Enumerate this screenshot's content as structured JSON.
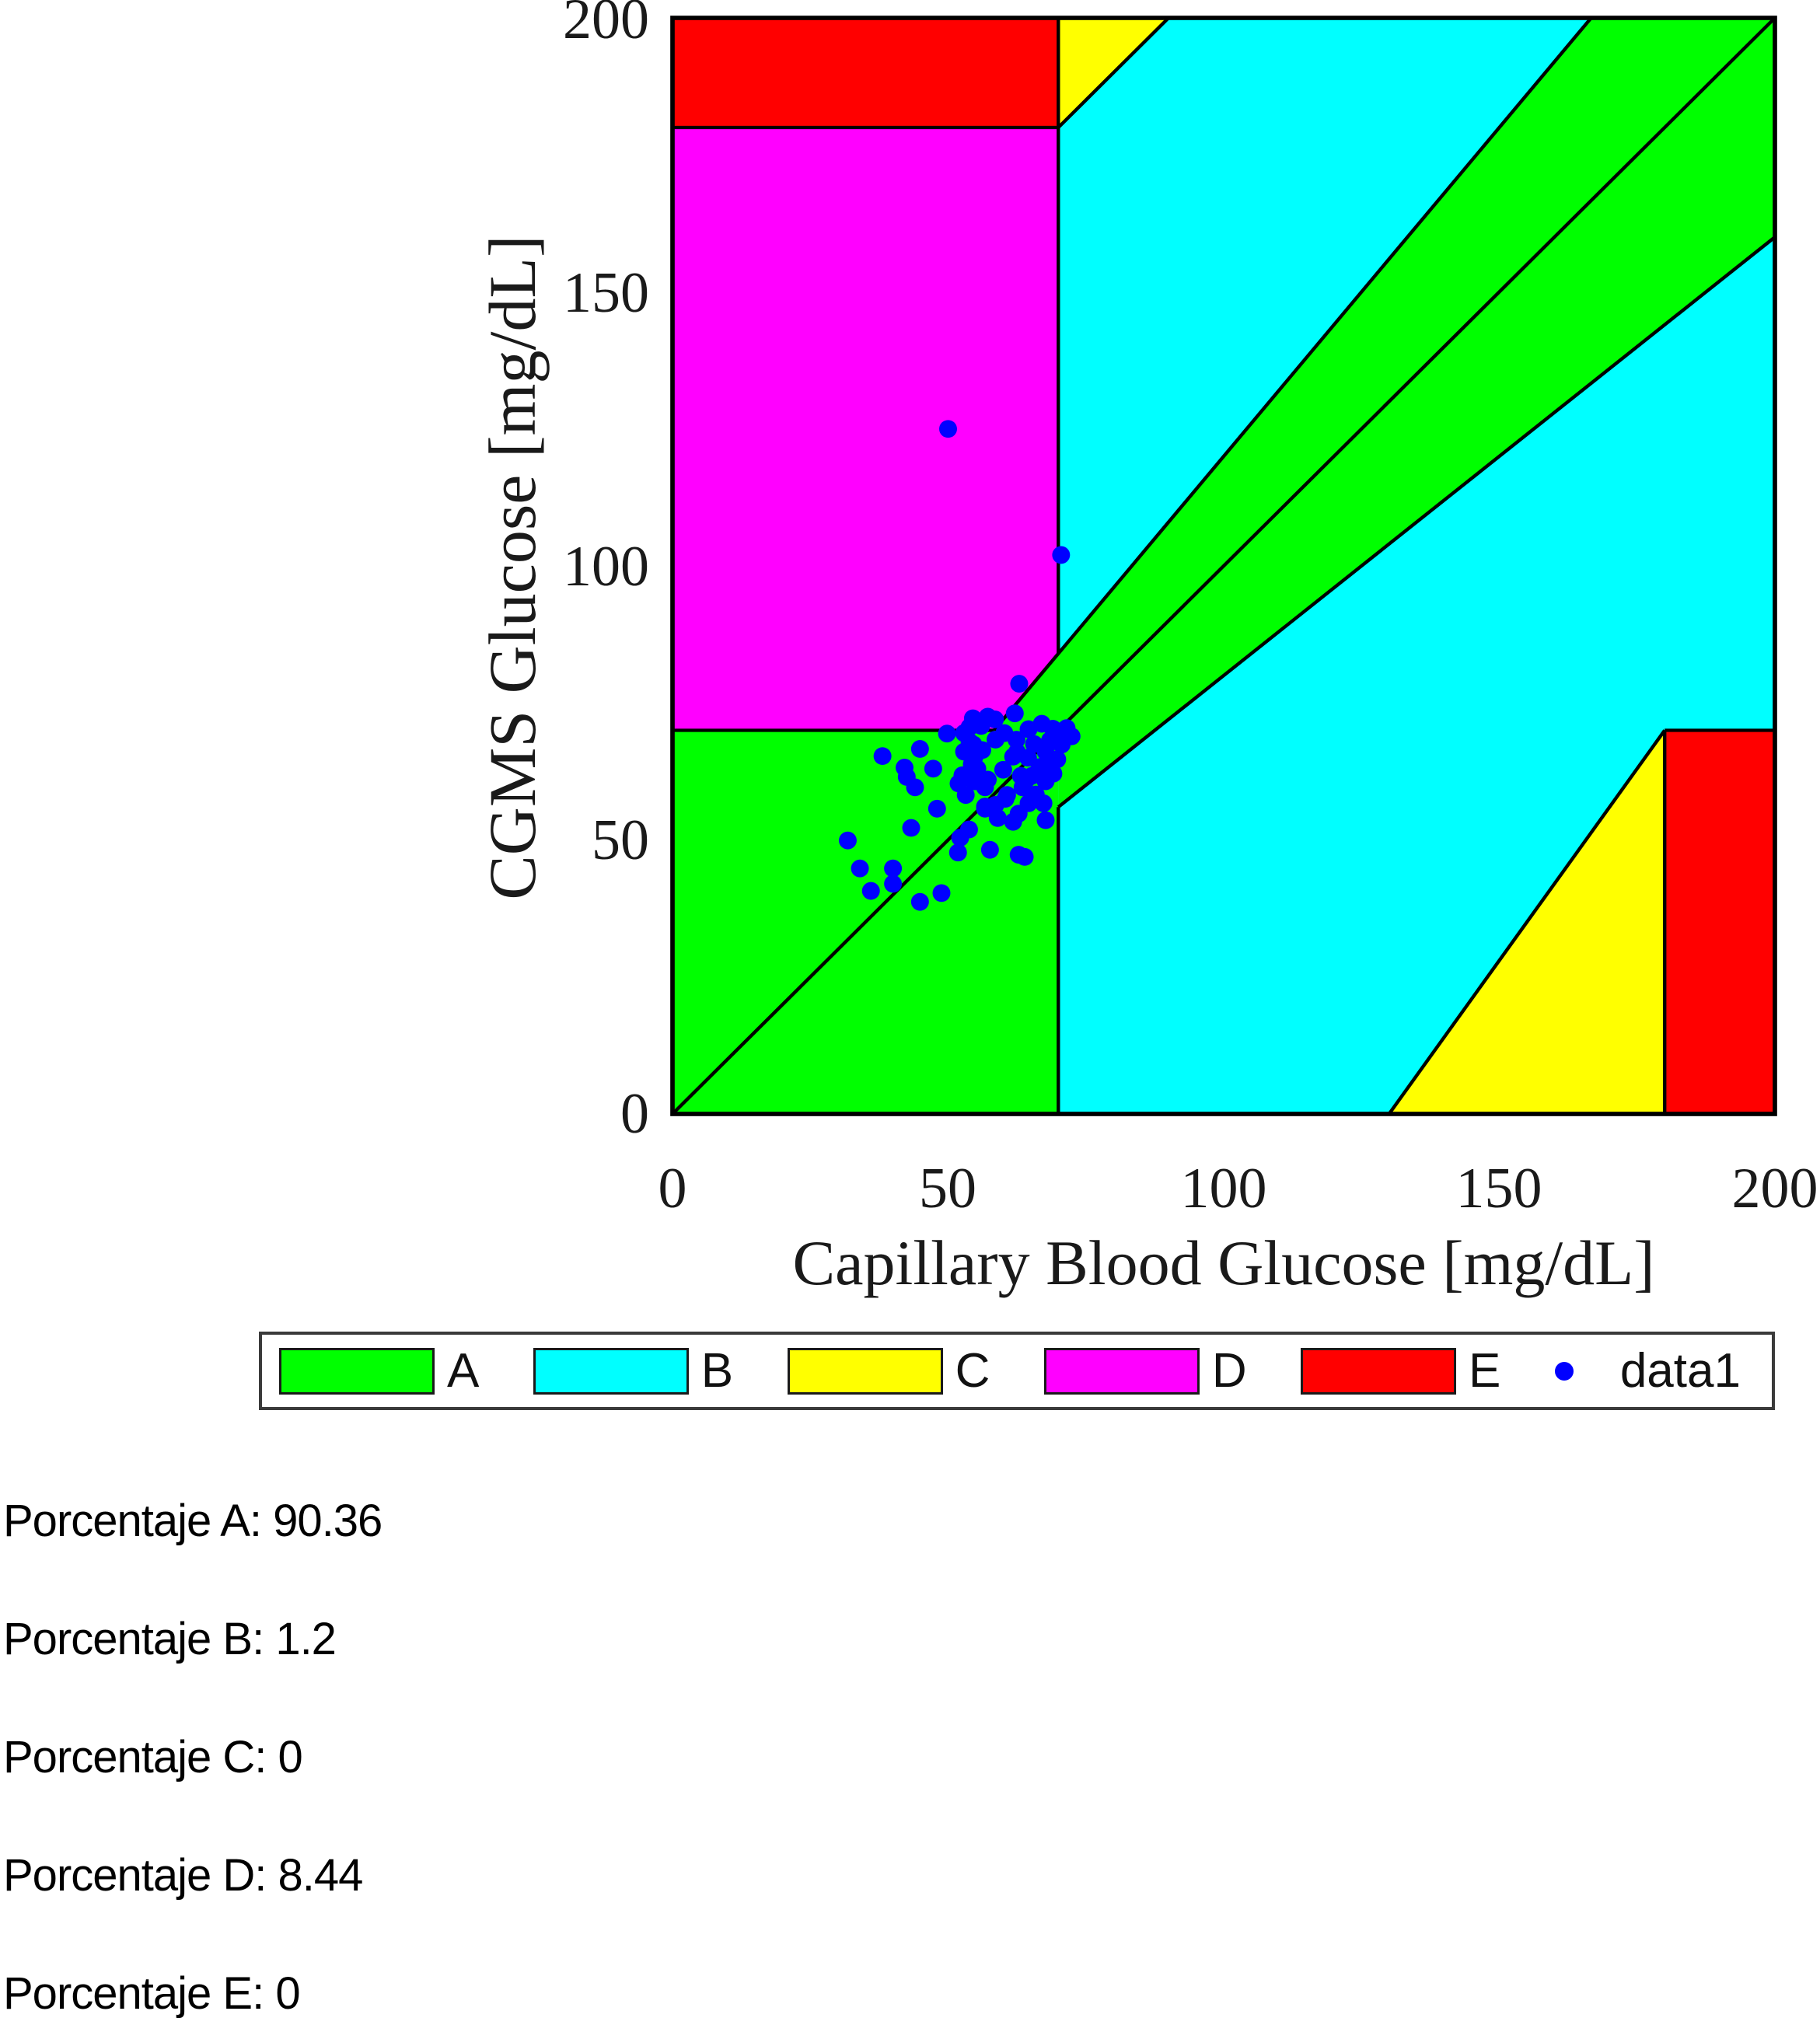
{
  "plot": {
    "xlabel": "Capillary Blood Glucose [mg/dL]",
    "ylabel": "CGMS Glucose [mg/dL]",
    "x_tick_labels": [
      "0",
      "50",
      "100",
      "150",
      "200"
    ],
    "y_tick_labels": [
      "0",
      "50",
      "100",
      "150",
      "200"
    ]
  },
  "legend": {
    "entries": [
      {
        "label": "A",
        "color": "#00ff00",
        "type": "patch"
      },
      {
        "label": "B",
        "color": "#00ffff",
        "type": "patch"
      },
      {
        "label": "C",
        "color": "#ffff00",
        "type": "patch"
      },
      {
        "label": "D",
        "color": "#ff00ff",
        "type": "patch"
      },
      {
        "label": "E",
        "color": "#ff0000",
        "type": "patch"
      },
      {
        "label": "data1",
        "color": "#0000ff",
        "type": "marker"
      }
    ]
  },
  "results": {
    "lines": [
      {
        "zone": "A",
        "value": "90.36",
        "text": "Porcentaje A: 90.36"
      },
      {
        "zone": "B",
        "value": "1.2",
        "text": "Porcentaje B: 1.2"
      },
      {
        "zone": "C",
        "value": "0",
        "text": "Porcentaje C: 0"
      },
      {
        "zone": "D",
        "value": "8.44",
        "text": "Porcentaje D: 8.44"
      },
      {
        "zone": "E",
        "value": "0",
        "text": "Porcentaje E: 0"
      }
    ]
  },
  "chart_data": {
    "type": "scatter",
    "subtype": "clarke-error-grid",
    "xlabel": "Capillary Blood Glucose [mg/dL]",
    "ylabel": "CGMS Glucose [mg/dL]",
    "xlim": [
      0,
      200
    ],
    "ylim": [
      0,
      200
    ],
    "x_ticks": [
      0,
      50,
      100,
      150,
      200
    ],
    "y_ticks": [
      0,
      50,
      100,
      150,
      200
    ],
    "grid": false,
    "legend_position": "below",
    "line_color": "#000000",
    "marker_color": "#0000ff",
    "marker_radius_units": 1.62,
    "zone_percentages": {
      "A": 90.36,
      "B": 1.2,
      "C": 0,
      "D": 8.44,
      "E": 0
    },
    "zones": [
      {
        "name": "B-background",
        "color": "#00ffff",
        "points": [
          [
            0,
            0
          ],
          [
            200,
            0
          ],
          [
            200,
            200
          ],
          [
            0,
            200
          ]
        ]
      },
      {
        "name": "D-upper-left",
        "color": "#ff00ff",
        "points": [
          [
            0,
            70
          ],
          [
            70,
            70
          ],
          [
            70,
            180
          ],
          [
            0,
            180
          ]
        ]
      },
      {
        "name": "E-upper-left",
        "color": "#ff0000",
        "points": [
          [
            0,
            180
          ],
          [
            70,
            180
          ],
          [
            70,
            200
          ],
          [
            0,
            200
          ]
        ]
      },
      {
        "name": "C-upper",
        "color": "#ffff00",
        "points": [
          [
            70,
            180
          ],
          [
            90,
            200
          ],
          [
            70,
            200
          ]
        ]
      },
      {
        "name": "C-lower",
        "color": "#ffff00",
        "points": [
          [
            130,
            0
          ],
          [
            180,
            0
          ],
          [
            180,
            70
          ]
        ]
      },
      {
        "name": "E-lower-right",
        "color": "#ff0000",
        "points": [
          [
            180,
            0
          ],
          [
            200,
            0
          ],
          [
            200,
            70
          ],
          [
            180,
            70
          ]
        ]
      },
      {
        "name": "A-square",
        "color": "#00ff00",
        "points": [
          [
            0,
            0
          ],
          [
            70,
            0
          ],
          [
            70,
            70
          ],
          [
            0,
            70
          ]
        ]
      },
      {
        "name": "A-band",
        "color": "#00ff00",
        "points": [
          [
            58.33,
            70
          ],
          [
            166.67,
            200
          ],
          [
            200,
            200
          ],
          [
            200,
            160
          ],
          [
            70,
            56
          ],
          [
            70,
            70
          ]
        ]
      }
    ],
    "boundary_lines": [
      [
        [
          0,
          0
        ],
        [
          200,
          200
        ]
      ],
      [
        [
          58.33,
          70
        ],
        [
          166.67,
          200
        ]
      ],
      [
        [
          70,
          56
        ],
        [
          200,
          160
        ]
      ],
      [
        [
          70,
          0
        ],
        [
          70,
          56
        ]
      ],
      [
        [
          70,
          84
        ],
        [
          70,
          200
        ]
      ],
      [
        [
          0,
          70
        ],
        [
          58.33,
          70
        ]
      ],
      [
        [
          0,
          180
        ],
        [
          70,
          180
        ]
      ],
      [
        [
          70,
          180
        ],
        [
          90,
          200
        ]
      ],
      [
        [
          130,
          0
        ],
        [
          180,
          70
        ]
      ],
      [
        [
          180,
          0
        ],
        [
          180,
          70
        ]
      ],
      [
        [
          180,
          70
        ],
        [
          200,
          70
        ]
      ]
    ],
    "series": [
      {
        "name": "data1",
        "points": [
          [
            50,
            125
          ],
          [
            62.9,
            78.5
          ],
          [
            54.5,
            72.2
          ],
          [
            57.2,
            72.5
          ],
          [
            56,
            70.8
          ],
          [
            58.5,
            72
          ],
          [
            53.9,
            70.6
          ],
          [
            70.5,
            102
          ],
          [
            62.1,
            73.1
          ],
          [
            67,
            71.2
          ],
          [
            70,
            69.8
          ],
          [
            64.6,
            70.2
          ],
          [
            69,
            70.3
          ],
          [
            71.5,
            70.4
          ],
          [
            70.6,
            67.4
          ],
          [
            72.4,
            68.9
          ],
          [
            68.5,
            68.2
          ],
          [
            62.4,
            68.3
          ],
          [
            60.2,
            69.5
          ],
          [
            58.6,
            68.3
          ],
          [
            65.6,
            67.5
          ],
          [
            67.7,
            66.1
          ],
          [
            62.5,
            66
          ],
          [
            69.8,
            64.7
          ],
          [
            66.6,
            63.3
          ],
          [
            65.2,
            61.7
          ],
          [
            67.7,
            60.7
          ],
          [
            63.5,
            59.6
          ],
          [
            65.9,
            58.3
          ],
          [
            64.6,
            56.7
          ],
          [
            67.3,
            56.7
          ],
          [
            69.1,
            62.1
          ],
          [
            64.2,
            61
          ],
          [
            67.5,
            63.5
          ],
          [
            67.7,
            53.6
          ],
          [
            63.9,
            46.9
          ],
          [
            61.8,
            65.2
          ],
          [
            64.5,
            65
          ],
          [
            60,
            62.8
          ],
          [
            63.2,
            61.7
          ],
          [
            57.2,
            61
          ],
          [
            49.8,
            69.4
          ],
          [
            44.9,
            66.6
          ],
          [
            38.1,
            65.3
          ],
          [
            42.1,
            63.2
          ],
          [
            47.3,
            63
          ],
          [
            53.9,
            67.9
          ],
          [
            54.8,
            65.2
          ],
          [
            55.3,
            63
          ],
          [
            51.9,
            60.3
          ],
          [
            52.9,
            69.5
          ],
          [
            54.6,
            67.4
          ],
          [
            52.9,
            66.1
          ],
          [
            56.2,
            66.4
          ],
          [
            54.3,
            63.8
          ],
          [
            52.6,
            61.8
          ],
          [
            54.8,
            60.7
          ],
          [
            56.7,
            59.6
          ],
          [
            53.2,
            58.2
          ],
          [
            58.6,
            56.4
          ],
          [
            60.7,
            58.2
          ],
          [
            56.7,
            55.7
          ],
          [
            59,
            54
          ],
          [
            62.8,
            54.8
          ],
          [
            42.5,
            61.5
          ],
          [
            31.8,
            49.9
          ],
          [
            34,
            44.8
          ],
          [
            36,
            40.7
          ],
          [
            40,
            44.8
          ],
          [
            40,
            42
          ],
          [
            43.3,
            52.2
          ],
          [
            44.9,
            38.7
          ],
          [
            48.8,
            40.3
          ],
          [
            44,
            59.6
          ],
          [
            48,
            55.7
          ],
          [
            52.2,
            50.4
          ],
          [
            53.8,
            51.9
          ],
          [
            51.8,
            47.7
          ],
          [
            56.7,
            56.1
          ],
          [
            57.6,
            48.2
          ],
          [
            60.4,
            57.5
          ],
          [
            61.8,
            53.3
          ],
          [
            62.8,
            47.3
          ]
        ]
      }
    ]
  }
}
